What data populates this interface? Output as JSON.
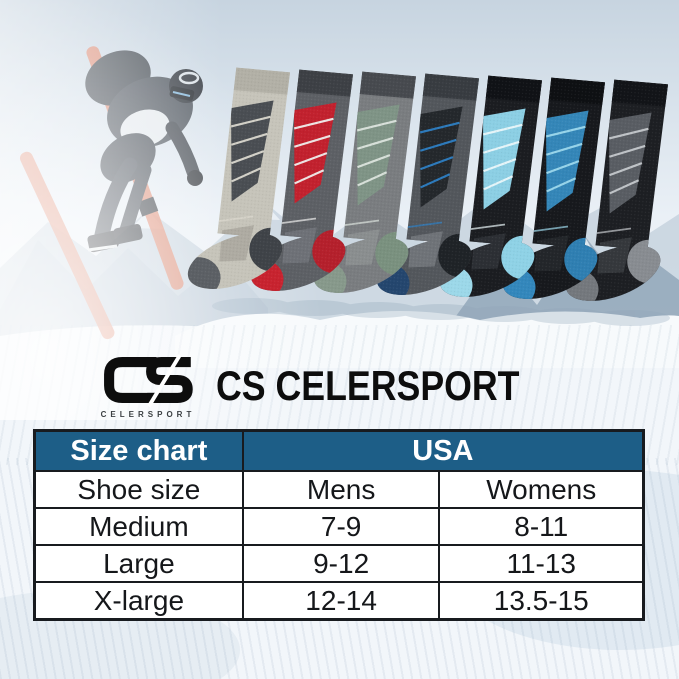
{
  "brand": {
    "monogram": "CS",
    "monogram_sub": "CELERSPORT",
    "wordmark": "CS CELERSPORT",
    "logo_color": "#0d0d0d"
  },
  "hero": {
    "ski_color": "#e18a70"
  },
  "product": {
    "socks": [
      {
        "name": "light-gray",
        "body": "#c6c4ba",
        "cuff": "#b2b0a6",
        "panel": "#4a4e53",
        "stripe": "#dbd9cf",
        "heel": "#3f4348",
        "toe": "#5c6065",
        "foot": "#a9a79d"
      },
      {
        "name": "red",
        "body": "#5d6065",
        "cuff": "#3d4045",
        "panel": "#c2212e",
        "stripe": "#f0f0ee",
        "heel": "#b5202c",
        "toe": "#c8232f",
        "foot": "#71747a"
      },
      {
        "name": "sage-green",
        "body": "#7a7d80",
        "cuff": "#474a4f",
        "panel": "#7f9486",
        "stripe": "#dde4de",
        "heel": "#7a917f",
        "toe": "#87998b",
        "foot": "#8d9092"
      },
      {
        "name": "blue-trim-gray",
        "body": "#53575c",
        "cuff": "#383c41",
        "panel": "#24282c",
        "stripe": "#2e7fc4",
        "heel": "#1f2327",
        "toe": "#24466e",
        "foot": "#74787d"
      },
      {
        "name": "sky-blue",
        "body": "#1b1d21",
        "cuff": "#101216",
        "panel": "#8ccfe4",
        "stripe": "#eaf7fa",
        "heel": "#8fd2e6",
        "toe": "#9cd8e9",
        "foot": "#2f3237"
      },
      {
        "name": "steel-blue",
        "body": "#17191d",
        "cuff": "#0e1013",
        "panel": "#3486b8",
        "stripe": "#9ed9ec",
        "heel": "#2f7fb2",
        "toe": "#3387bc",
        "foot": "#26292d"
      },
      {
        "name": "charcoal",
        "body": "#1d1f23",
        "cuff": "#121418",
        "panel": "#595d63",
        "stripe": "#c6c9cd",
        "heel": "#888c91",
        "toe": "#74787d",
        "foot": "#3a3d41"
      }
    ]
  },
  "size_chart": {
    "corner_label": "Size chart",
    "region_label": "USA",
    "columns": [
      "Shoe size",
      "Mens",
      "Womens"
    ],
    "rows": [
      [
        "Medium",
        "7-9",
        "8-11"
      ],
      [
        "Large",
        "9-12",
        "11-13"
      ],
      [
        "X-large",
        "12-14",
        "13.5-15"
      ]
    ],
    "header_bg": "#1d5e87",
    "header_text": "#ffffff",
    "border_color": "#181b1f",
    "cell_bg": "#ffffff",
    "text_color": "#15171a"
  },
  "chart_data": {
    "type": "table",
    "title": "Size chart",
    "columns": [
      "Size chart",
      "USA - Mens",
      "USA - Womens"
    ],
    "rows": [
      [
        "Shoe size",
        "Mens",
        "Womens"
      ],
      [
        "Medium",
        "7-9",
        "8-11"
      ],
      [
        "Large",
        "9-12",
        "11-13"
      ],
      [
        "X-large",
        "12-14",
        "13.5-15"
      ]
    ]
  }
}
